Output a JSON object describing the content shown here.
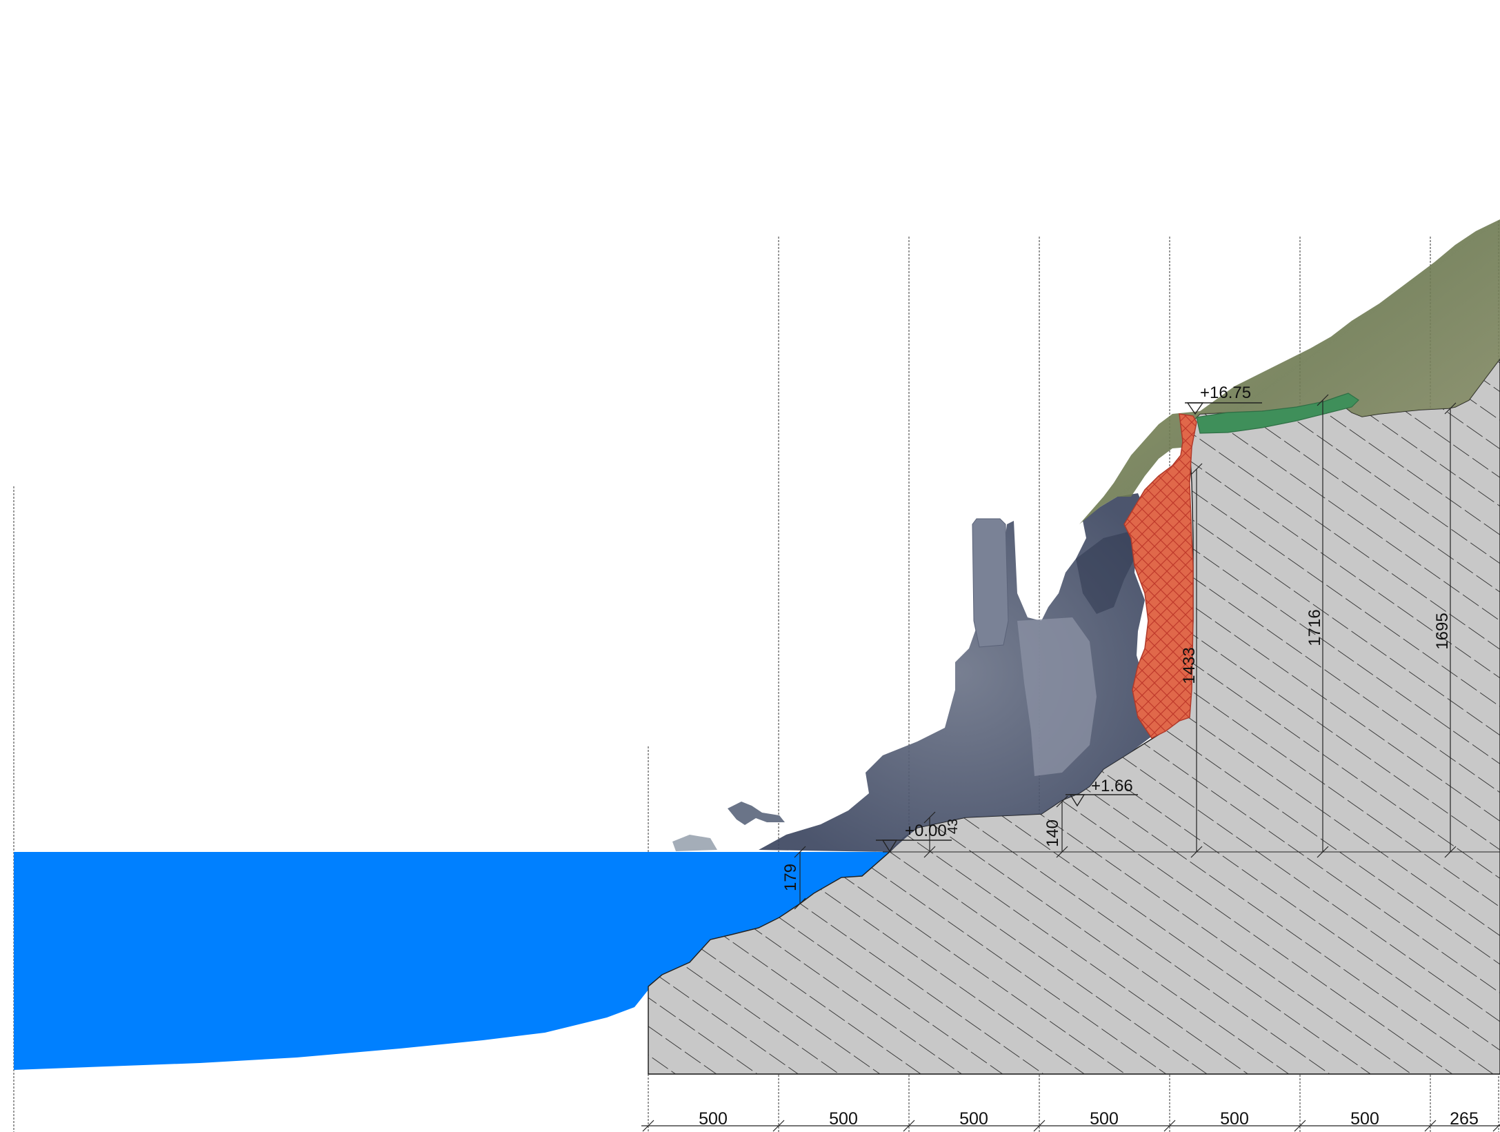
{
  "elevations": {
    "base": "+0.00",
    "step": "+1.66",
    "top": "+16.75"
  },
  "vertical_dims": {
    "water_depth": "179",
    "small_step": "43",
    "step_height": "140",
    "wall_height": "1433",
    "mid_height": "1716",
    "right_height": "1695"
  },
  "bottom_dims": [
    "500",
    "500",
    "500",
    "500",
    "500",
    "500",
    "265"
  ],
  "colors": {
    "water": "#0080ff",
    "ground": "#c8c8c8",
    "hatch": "#1a1a1a",
    "red_fill": "#e0684a",
    "red_hatch": "#c0392b",
    "green_fill": "#3f8f5a",
    "rock_dark": "#4a5570",
    "rock_mid": "#6c7488",
    "vegetation": "#7d8a4a",
    "lines": "#222222"
  }
}
